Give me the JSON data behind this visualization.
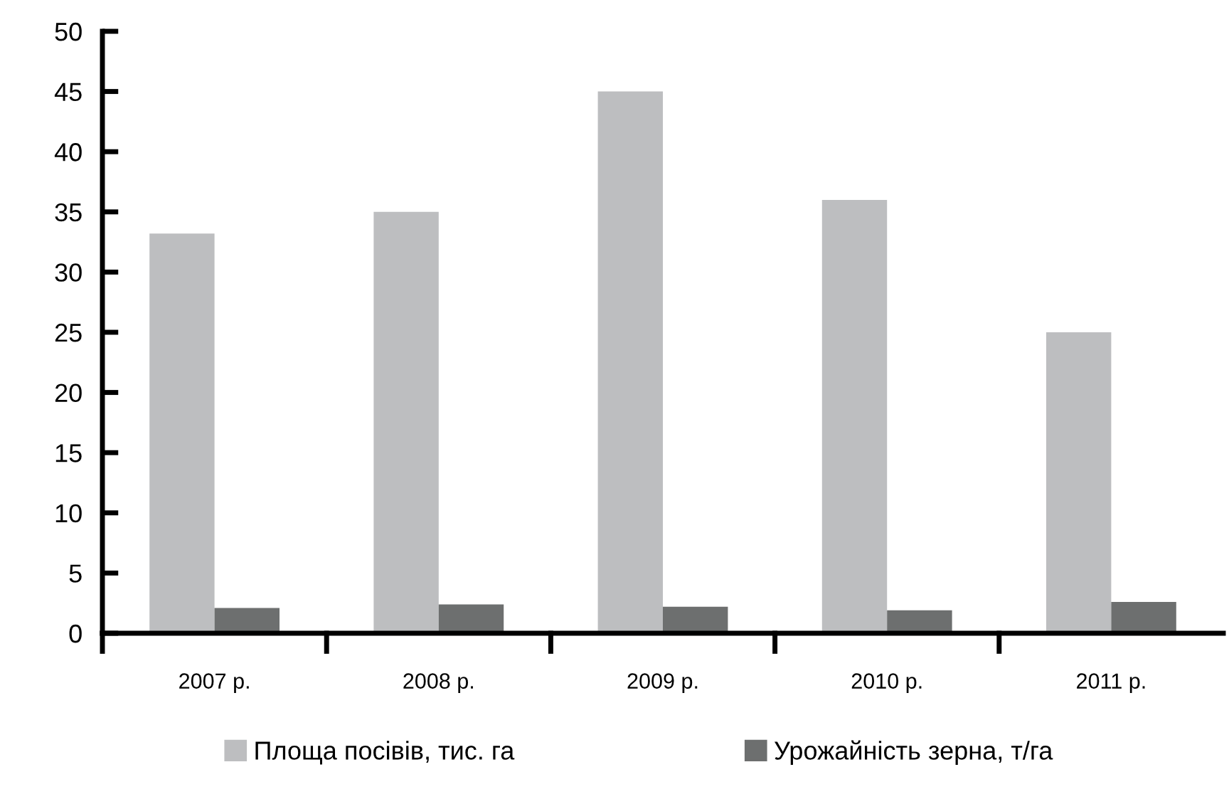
{
  "chart_data": {
    "type": "bar",
    "categories": [
      "2007 р.",
      "2008 р.",
      "2009 р.",
      "2010 р.",
      "2011 р."
    ],
    "series": [
      {
        "name": "Площа посівів, тис. га",
        "color": "#bdbec0",
        "values": [
          33.2,
          35,
          45,
          36,
          25
        ]
      },
      {
        "name": "Урожайність зерна, т/га",
        "color": "#6d6f6f",
        "values": [
          2.1,
          2.4,
          2.2,
          1.9,
          2.6
        ]
      }
    ],
    "ylim": [
      0,
      50
    ],
    "yticks": [
      0,
      5,
      10,
      15,
      20,
      25,
      30,
      35,
      40,
      45,
      50
    ],
    "grid": false,
    "legend": "bottom"
  }
}
